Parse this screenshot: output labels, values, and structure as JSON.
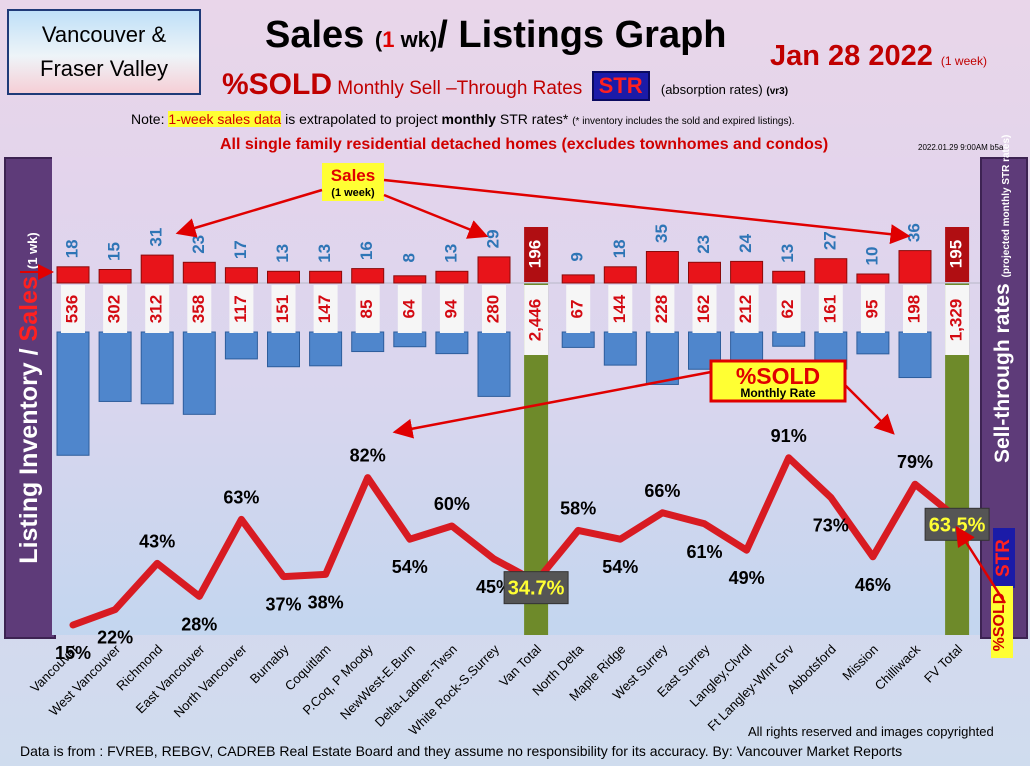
{
  "header": {
    "region_line1": "Vancouver &",
    "region_line2": "Fraser Valley",
    "title_part1": "Sales ",
    "title_paren_open": "(",
    "title_one": "1",
    "title_paren_close": " wk)",
    "title_part2": "/ Listings Graph",
    "date": "Jan  28  2022",
    "date_note": "(1 week)",
    "sold_word": "%SOLD",
    "subtitle_words": "Monthly Sell –Through Rates",
    "str_badge": "STR",
    "subtitle_note": "(absorption rates)",
    "subtitle_version": "(vr3)",
    "note_prefix": "Note: ",
    "note_highlight": "1-week sales data",
    "note_middle": " is extrapolated to project ",
    "note_bold_monthly": "monthly",
    "note_rest": " STR rates* ",
    "note_tiny": "(* inventory includes the sold and expired listings).",
    "homes_line": "All single family residential detached homes (excludes townhomes and condos)",
    "stamp": "2022.01.29 9:00AM b5a"
  },
  "side_labels": {
    "left_inventory": "Listing Inventory",
    "left_slash": "/",
    "left_sales": "Sales",
    "left_wk": "(1 wk)",
    "right_main": "Sell-through rates",
    "right_note": "(projected monthly STR rates)",
    "right_str": "STR",
    "right_sold": "%SOLD"
  },
  "annotations": {
    "sales_callout_line1": "Sales",
    "sales_callout_line2": "(1 week)",
    "sold_callout_line1": "%SOLD",
    "sold_callout_line2": "Monthly Rate"
  },
  "footer": {
    "rights": "All rights reserved and  images copyrighted",
    "source": "Data is from : FVREB, REBGV, CADREB Real Estate Board and they assume no responsibility for its accuracy. By: Vancouver Market Reports"
  },
  "colors": {
    "sales_bar": "#e8141a",
    "inventory_bar": "#4f86cc",
    "total_bar": "#6e8a2a",
    "total_sales_box": "#b00e12",
    "sales_label": "#2e75b6",
    "inventory_label": "#d40a12",
    "rate_line": "#d81b22"
  },
  "chart_data": {
    "type": "bar",
    "categories": [
      "Vancouver",
      "West Vancouver",
      "Richmond",
      "East Vancouver",
      "North Vancouver",
      "Burnaby",
      "Coquitlam",
      "P.Coq, P Moody",
      "NewWest-E.Burn",
      "Delta-Ladner-Twsn",
      "White Rock-S.Surrey",
      "Van Total",
      "North Delta",
      "Maple Ridge",
      "West Surrey",
      "East Surrey",
      "Langley,Clvrdl",
      "Ft Langley-Wlnt Grv",
      "Abbotsford",
      "Mission",
      "Chilliwack",
      "FV Total"
    ],
    "series": [
      {
        "name": "Sales",
        "values": [
          18,
          15,
          31,
          23,
          17,
          13,
          13,
          16,
          8,
          13,
          29,
          196,
          9,
          18,
          35,
          23,
          24,
          13,
          27,
          10,
          36,
          195
        ],
        "labels": [
          "18",
          "15",
          "31",
          "23",
          "17",
          "13",
          "13",
          "16",
          "8",
          "13",
          "29",
          "196",
          "9",
          "18",
          "35",
          "23",
          "24",
          "13",
          "27",
          "10",
          "36",
          "195"
        ]
      },
      {
        "name": "Listing Inventory",
        "values": [
          536,
          302,
          312,
          358,
          117,
          151,
          147,
          85,
          64,
          94,
          280,
          2446,
          67,
          144,
          228,
          162,
          212,
          62,
          161,
          95,
          198,
          1329
        ],
        "labels": [
          "536",
          "302",
          "312",
          "358",
          "117",
          "151",
          "147",
          "85",
          "64",
          "94",
          "280",
          "2,446",
          "67",
          "144",
          "228",
          "162",
          "212",
          "62",
          "161",
          "95",
          "198",
          "1,329"
        ]
      },
      {
        "name": "%SOLD",
        "values": [
          15,
          22,
          43,
          28,
          63,
          37,
          38,
          82,
          54,
          60,
          45,
          34.7,
          58,
          54,
          66,
          61,
          49,
          91,
          73,
          46,
          79,
          63.5
        ],
        "labels": [
          "15%",
          "22%",
          "43%",
          "28%",
          "63%",
          "37%",
          "38%",
          "82%",
          "54%",
          "60%",
          "45%",
          "34.7%",
          "58%",
          "54%",
          "66%",
          "61%",
          "49%",
          "91%",
          "73%",
          "46%",
          "79%",
          "63.5%"
        ]
      }
    ],
    "total_categories": [
      "Van Total",
      "FV Total"
    ]
  }
}
